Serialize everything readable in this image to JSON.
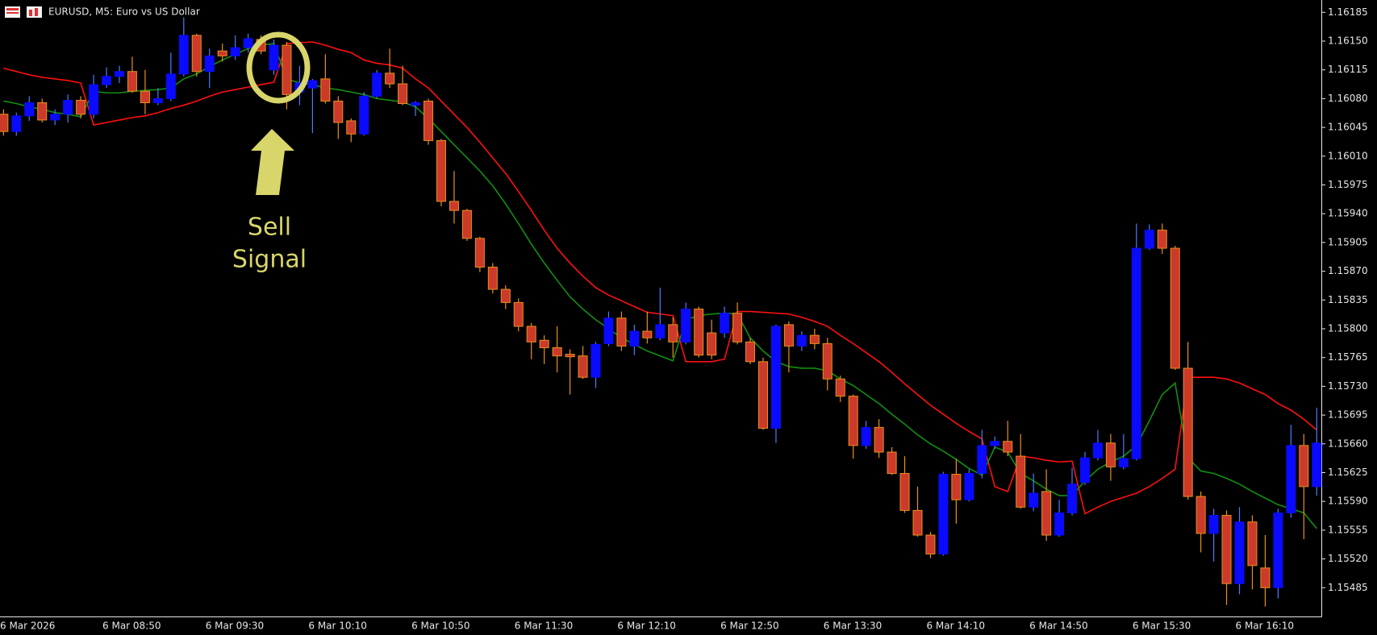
{
  "chart_data": {
    "type": "candlestick",
    "title": "EURUSD, M5:  Euro vs US Dollar",
    "categories": [
      "6 Mar 2026",
      null,
      null,
      null,
      null,
      null,
      null,
      null,
      "6 Mar 08:50",
      null,
      null,
      null,
      null,
      null,
      null,
      null,
      "6 Mar 09:30",
      null,
      null,
      null,
      null,
      null,
      null,
      null,
      "6 Mar 10:10",
      null,
      null,
      null,
      null,
      null,
      null,
      null,
      "6 Mar 10:50",
      null,
      null,
      null,
      null,
      null,
      null,
      null,
      "6 Mar 11:30",
      null,
      null,
      null,
      null,
      null,
      null,
      null,
      "6 Mar 12:10",
      null,
      null,
      null,
      null,
      null,
      null,
      null,
      "6 Mar 12:50",
      null,
      null,
      null,
      null,
      null,
      null,
      null,
      "6 Mar 13:30",
      null,
      null,
      null,
      null,
      null,
      null,
      null,
      "6 Mar 14:10",
      null,
      null,
      null,
      null,
      null,
      null,
      null,
      "6 Mar 14:50",
      null,
      null,
      null,
      null,
      null,
      null,
      null,
      "6 Mar 15:30",
      null,
      null,
      null,
      null,
      null,
      null,
      null,
      "6 Mar 16:10",
      null,
      null,
      null,
      null,
      null,
      null
    ],
    "open": [
      1.16061,
      1.1604,
      1.16059,
      1.16075,
      1.16054,
      1.16061,
      1.16078,
      1.16061,
      1.16097,
      1.16107,
      1.16113,
      1.16089,
      1.16075,
      1.1608,
      1.1611,
      1.16157,
      1.16113,
      1.16138,
      1.16132,
      1.16142,
      1.16152,
      1.16115,
      1.16145,
      1.16088,
      1.16093,
      1.16104,
      1.16077,
      1.16053,
      1.16037,
      1.16083,
      1.16111,
      1.16098,
      1.16072,
      1.16077,
      1.16029,
      1.15955,
      1.15944,
      1.1591,
      1.15875,
      1.15848,
      1.15832,
      1.15803,
      1.15786,
      1.15777,
      1.15769,
      1.15767,
      1.15741,
      1.15782,
      1.15813,
      1.15779,
      1.15797,
      1.15789,
      1.15805,
      1.15784,
      1.15824,
      1.15795,
      1.15795,
      1.15819,
      1.15784,
      1.1576,
      1.15679,
      1.15805,
      1.15779,
      1.15792,
      1.15782,
      1.15739,
      1.15718,
      1.15658,
      1.1568,
      1.1565,
      1.15624,
      1.15579,
      1.15549,
      1.15526,
      1.15623,
      1.15592,
      1.15624,
      1.15658,
      1.15663,
      1.15645,
      1.15583,
      1.15602,
      1.15549,
      1.15576,
      1.15613,
      1.15643,
      1.15661,
      1.15632,
      1.15642,
      1.15898,
      1.1592,
      1.15898,
      1.15752,
      1.15596,
      1.15551,
      1.15573,
      1.1549,
      1.15565,
      1.15509,
      1.15485,
      1.15576,
      1.15658,
      1.15608
    ],
    "high": [
      1.16067,
      1.16063,
      1.16083,
      1.1608,
      1.16067,
      1.16085,
      1.16083,
      1.16109,
      1.16118,
      1.1612,
      1.16131,
      1.16115,
      1.16093,
      1.16136,
      1.16179,
      1.16159,
      1.16141,
      1.16147,
      1.16157,
      1.16159,
      1.16157,
      1.16152,
      1.16149,
      1.1612,
      1.16104,
      1.16134,
      1.16083,
      1.16056,
      1.16088,
      1.16115,
      1.16141,
      1.1612,
      1.16077,
      1.1608,
      1.16031,
      1.15992,
      1.15946,
      1.15912,
      1.1588,
      1.15853,
      1.15837,
      1.15807,
      1.15792,
      1.15803,
      1.15775,
      1.15779,
      1.15784,
      1.15821,
      1.15821,
      1.15805,
      1.15821,
      1.1585,
      1.15814,
      1.15832,
      1.15827,
      1.15811,
      1.15827,
      1.15832,
      1.15789,
      1.15765,
      1.15805,
      1.15809,
      1.15797,
      1.158,
      1.15789,
      1.15743,
      1.1572,
      1.15688,
      1.1569,
      1.15656,
      1.15645,
      1.15608,
      1.15553,
      1.15626,
      1.15642,
      1.15629,
      1.15677,
      1.15669,
      1.15688,
      1.15672,
      1.15624,
      1.15629,
      1.15592,
      1.15631,
      1.1565,
      1.15677,
      1.15672,
      1.15672,
      1.15928,
      1.15927,
      1.15928,
      1.15901,
      1.15784,
      1.15602,
      1.15581,
      1.15579,
      1.15583,
      1.15573,
      1.15549,
      1.15581,
      1.15683,
      1.15672,
      1.15704
    ],
    "low": [
      1.16035,
      1.16035,
      1.16053,
      1.16051,
      1.16048,
      1.16051,
      1.16056,
      1.16056,
      1.16093,
      1.16099,
      1.16087,
      1.16061,
      1.16072,
      1.16077,
      1.16107,
      1.16107,
      1.16093,
      1.16125,
      1.16127,
      1.16136,
      1.16134,
      1.16109,
      1.16067,
      1.16072,
      1.16038,
      1.16074,
      1.16031,
      1.16027,
      1.16035,
      1.1608,
      1.16093,
      1.16072,
      1.16059,
      1.16024,
      1.15949,
      1.15928,
      1.15907,
      1.15869,
      1.15843,
      1.15824,
      1.15797,
      1.15763,
      1.15757,
      1.15747,
      1.1572,
      1.15739,
      1.15728,
      1.15779,
      1.15773,
      1.15768,
      1.15782,
      1.15786,
      1.15765,
      1.15781,
      1.15765,
      1.15763,
      1.15789,
      1.15781,
      1.15757,
      1.15677,
      1.15661,
      1.15747,
      1.15773,
      1.15775,
      1.15725,
      1.15711,
      1.15642,
      1.15654,
      1.15643,
      1.15622,
      1.15576,
      1.15547,
      1.15521,
      1.15524,
      1.15563,
      1.1559,
      1.15618,
      1.15654,
      1.15645,
      1.15581,
      1.15578,
      1.15542,
      1.15547,
      1.15573,
      1.1561,
      1.1564,
      1.15615,
      1.15629,
      1.1564,
      1.15896,
      1.15891,
      1.1575,
      1.15592,
      1.15528,
      1.15517,
      1.15464,
      1.15477,
      1.15483,
      1.15462,
      1.15472,
      1.1557,
      1.15544,
      1.15597
    ],
    "close": [
      1.1604,
      1.16059,
      1.16075,
      1.16054,
      1.16061,
      1.16078,
      1.16061,
      1.16097,
      1.16107,
      1.16113,
      1.16089,
      1.16075,
      1.1608,
      1.1611,
      1.16157,
      1.16113,
      1.16132,
      1.16132,
      1.16142,
      1.16153,
      1.16138,
      1.16145,
      1.16085,
      1.16099,
      1.16102,
      1.16077,
      1.16051,
      1.16037,
      1.16083,
      1.16111,
      1.16098,
      1.16074,
      1.16075,
      1.16029,
      1.15955,
      1.15944,
      1.1591,
      1.15875,
      1.15848,
      1.15832,
      1.15803,
      1.15784,
      1.15777,
      1.15767,
      1.15766,
      1.15741,
      1.15781,
      1.15813,
      1.15779,
      1.15797,
      1.15789,
      1.15805,
      1.15784,
      1.15824,
      1.15768,
      1.15768,
      1.15819,
      1.15784,
      1.1576,
      1.15679,
      1.15803,
      1.15779,
      1.15792,
      1.15782,
      1.15739,
      1.15718,
      1.15658,
      1.1568,
      1.1565,
      1.15624,
      1.15579,
      1.15549,
      1.15526,
      1.15623,
      1.15592,
      1.15624,
      1.15658,
      1.15663,
      1.1565,
      1.15583,
      1.156,
      1.15549,
      1.15576,
      1.15611,
      1.15643,
      1.15661,
      1.15632,
      1.15642,
      1.15898,
      1.1592,
      1.15898,
      1.15752,
      1.15596,
      1.15551,
      1.15573,
      1.1549,
      1.15565,
      1.15512,
      1.15485,
      1.15576,
      1.15658,
      1.15608,
      1.15661
    ],
    "up_color": "#0a0aff",
    "up_wick_color": "#4a7cff",
    "down_color": "#cc3a2a",
    "down_wick_color": "#e8901e",
    "series": [
      {
        "color": "#ff1010",
        "values": [
          1.16117,
          1.16113,
          1.16109,
          1.16106,
          1.16104,
          1.16102,
          1.16099,
          1.16048,
          1.16051,
          1.16054,
          1.16057,
          1.16059,
          1.16063,
          1.16068,
          1.16072,
          1.16077,
          1.16083,
          1.16088,
          1.16091,
          1.16094,
          1.16097,
          1.161,
          1.16147,
          1.16148,
          1.16149,
          1.16145,
          1.1614,
          1.16136,
          1.16127,
          1.16123,
          1.16121,
          1.16117,
          1.16104,
          1.16093,
          1.16077,
          1.16061,
          1.16045,
          1.16027,
          1.16008,
          1.15989,
          1.15967,
          1.15944,
          1.1592,
          1.15898,
          1.1588,
          1.15864,
          1.1585,
          1.15841,
          1.15834,
          1.15827,
          1.1582,
          1.15818,
          1.15816,
          1.1576,
          1.1576,
          1.1576,
          1.15763,
          1.15821,
          1.15821,
          1.1582,
          1.15819,
          1.15818,
          1.15814,
          1.15809,
          1.15803,
          1.15792,
          1.15782,
          1.15771,
          1.1576,
          1.15747,
          1.15733,
          1.1572,
          1.15707,
          1.15696,
          1.15685,
          1.15675,
          1.15666,
          1.15608,
          1.15602,
          1.15645,
          1.15643,
          1.1564,
          1.15638,
          1.15639,
          1.15575,
          1.15583,
          1.1559,
          1.15595,
          1.156,
          1.15608,
          1.15618,
          1.15629,
          1.15741,
          1.15741,
          1.15741,
          1.15739,
          1.15734,
          1.15727,
          1.1572,
          1.15709,
          1.15701,
          1.1569,
          1.15677
        ]
      },
      {
        "color": "#109010",
        "values": [
          1.16077,
          1.16074,
          1.1607,
          1.16067,
          1.16063,
          1.16061,
          1.16058,
          1.16089,
          1.16087,
          1.16087,
          1.16089,
          1.1609,
          1.16091,
          1.16093,
          1.16104,
          1.1611,
          1.16119,
          1.16127,
          1.16134,
          1.16141,
          1.16145,
          1.16147,
          1.16104,
          1.16099,
          1.16097,
          1.16093,
          1.16091,
          1.16088,
          1.16085,
          1.1608,
          1.16078,
          1.16076,
          1.1607,
          1.16056,
          1.1604,
          1.16024,
          1.16008,
          1.15992,
          1.15974,
          1.15952,
          1.15928,
          1.15903,
          1.1588,
          1.15859,
          1.15839,
          1.15824,
          1.15811,
          1.158,
          1.15789,
          1.15781,
          1.15773,
          1.15767,
          1.15761,
          1.15811,
          1.15816,
          1.15818,
          1.15819,
          1.15818,
          1.15789,
          1.15773,
          1.1576,
          1.15754,
          1.15752,
          1.15752,
          1.15749,
          1.15739,
          1.15731,
          1.1572,
          1.15709,
          1.15696,
          1.15684,
          1.15671,
          1.1566,
          1.15651,
          1.15641,
          1.1563,
          1.15622,
          1.15656,
          1.1565,
          1.15624,
          1.15615,
          1.15605,
          1.15597,
          1.15597,
          1.15615,
          1.15629,
          1.15638,
          1.15645,
          1.15658,
          1.15688,
          1.1572,
          1.15734,
          1.15643,
          1.15627,
          1.15624,
          1.15618,
          1.15611,
          1.15602,
          1.15594,
          1.15586,
          1.15581,
          1.15576,
          1.15557
        ]
      }
    ],
    "ylim": [
      1.1545,
      1.162
    ],
    "yticks": [
      1.16185,
      {
        "value": 1.1615,
        "label": "1.16150"
      },
      1.16115,
      {
        "value": 1.1608,
        "label": "1.16080"
      },
      1.16045,
      {
        "value": 1.1601,
        "label": "1.16010"
      },
      1.15975,
      {
        "value": 1.1594,
        "label": "1.15940"
      },
      1.15905,
      {
        "value": 1.1587,
        "label": "1.15870"
      },
      1.15835,
      {
        "value": 1.158,
        "label": "1.15800"
      },
      1.15765,
      {
        "value": 1.1573,
        "label": "1.15730"
      },
      1.15695,
      {
        "value": 1.1566,
        "label": "1.15660"
      },
      1.15625,
      {
        "value": 1.1559,
        "label": "1.15590"
      },
      1.15555,
      {
        "value": 1.1552,
        "label": "1.15520"
      },
      1.15485
    ],
    "grid": false,
    "annotation": {
      "lines": [
        "Sell",
        "Signal"
      ],
      "color": "#d8d66a"
    }
  }
}
